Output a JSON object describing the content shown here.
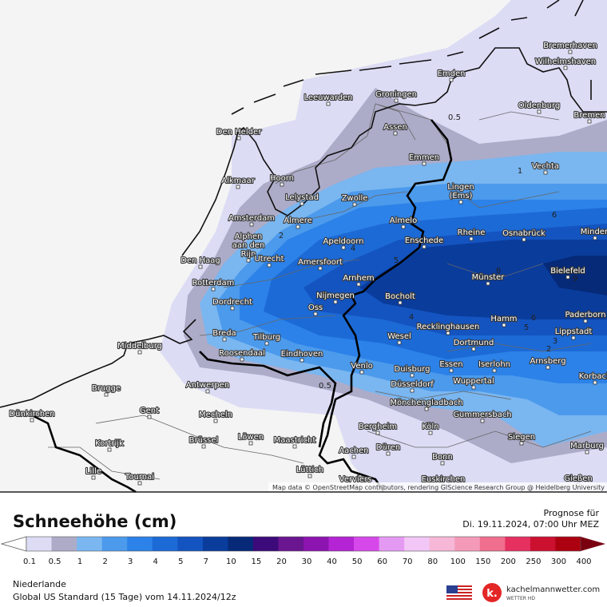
{
  "map": {
    "attribution": "Map data © OpenStreetMap contributors, rendering GIScience Research Group @ Heidelberg University",
    "cities": [
      "Bremerhaven",
      "Wilhelmshaven",
      "Emden",
      "Leeuwarden",
      "Groningen",
      "Oldenburg",
      "Bremen",
      "Den Helder",
      "Assen",
      "Emmen",
      "Vechta",
      "Alkmaar",
      "Hoorn",
      [
        "Lingen",
        "(Ems)"
      ],
      "Lelystad",
      "Zwolle",
      "Amsterdam",
      "Almere",
      "Almelo",
      "Rheine",
      "Osnabrück",
      "Minden",
      [
        "Alphen",
        "aan den",
        "Rijn"
      ],
      "Apeldoorn",
      "Enschede",
      "Den Haag",
      "Utrecht",
      "Amersfoort",
      "Bielefeld",
      "Arnhem",
      "Münster",
      "Rotterdam",
      "Nijmegen",
      "Bocholt",
      "Dordrecht",
      "Oss",
      "Hamm",
      "Paderborn",
      "Recklinghausen",
      "Lippstadt",
      "Breda",
      "Tilburg",
      "Wesel",
      "Middelburg",
      "Dortmund",
      "Roosendaal",
      "Eindhoven",
      "Arnsberg",
      "Essen",
      "Iserlohn",
      "Venlo",
      "Duisburg",
      "Wuppertal",
      "Korbach",
      "Antwerpen",
      "Brugge",
      "Düsseldorf",
      "Mönchengladbach",
      "Dünkirchen",
      "Gent",
      "Mecheln",
      "Gummersbach",
      "Bergheim",
      "Köln",
      "Kortrijk",
      "Brüssel",
      "Löwen",
      "Maastricht",
      "Siegen",
      "Marburg",
      "Düren",
      "Aachen",
      "Bonn",
      "Lille",
      "Tournai",
      "Lüttich",
      "Verviers",
      "Euskirchen",
      "Gießen"
    ],
    "contour_labels": [
      "0.5",
      "1",
      "0.5",
      "2",
      "4",
      "5",
      "4",
      "2",
      "3",
      "5",
      "6",
      "8",
      "9",
      "6"
    ]
  },
  "legend": {
    "title": "Schneehöhe (cm)",
    "values": [
      0.1,
      0.5,
      1,
      2,
      3,
      4,
      5,
      7,
      10,
      15,
      20,
      30,
      40,
      50,
      60,
      70,
      80,
      100,
      150,
      200,
      250,
      300,
      400
    ],
    "colors": [
      "#dcdcf5",
      "#acacc9",
      "#7ab6f0",
      "#4c9aec",
      "#2c82e8",
      "#1c6ad6",
      "#1454c0",
      "#0a3c9c",
      "#062a78",
      "#3c0a7a",
      "#6a1690",
      "#8c14b0",
      "#b424d4",
      "#d648ea",
      "#e49af2",
      "#f2c6f6",
      "#f6b8d6",
      "#f49ab8",
      "#f06e8e",
      "#e63060",
      "#cc1030",
      "#ac0010",
      "#7a0010",
      "#4a0000"
    ]
  },
  "forecast": {
    "label": "Prognose für",
    "time": "Di. 19.11.2024, 07:00 Uhr MEZ"
  },
  "footer": {
    "region": "Niederlande",
    "model": "Global US Standard (15 Tage) vom  14.11.2024/12z"
  },
  "logo": {
    "letter": "k.",
    "site": "kachelmannwetter.com",
    "sub": "WETTER HD"
  }
}
